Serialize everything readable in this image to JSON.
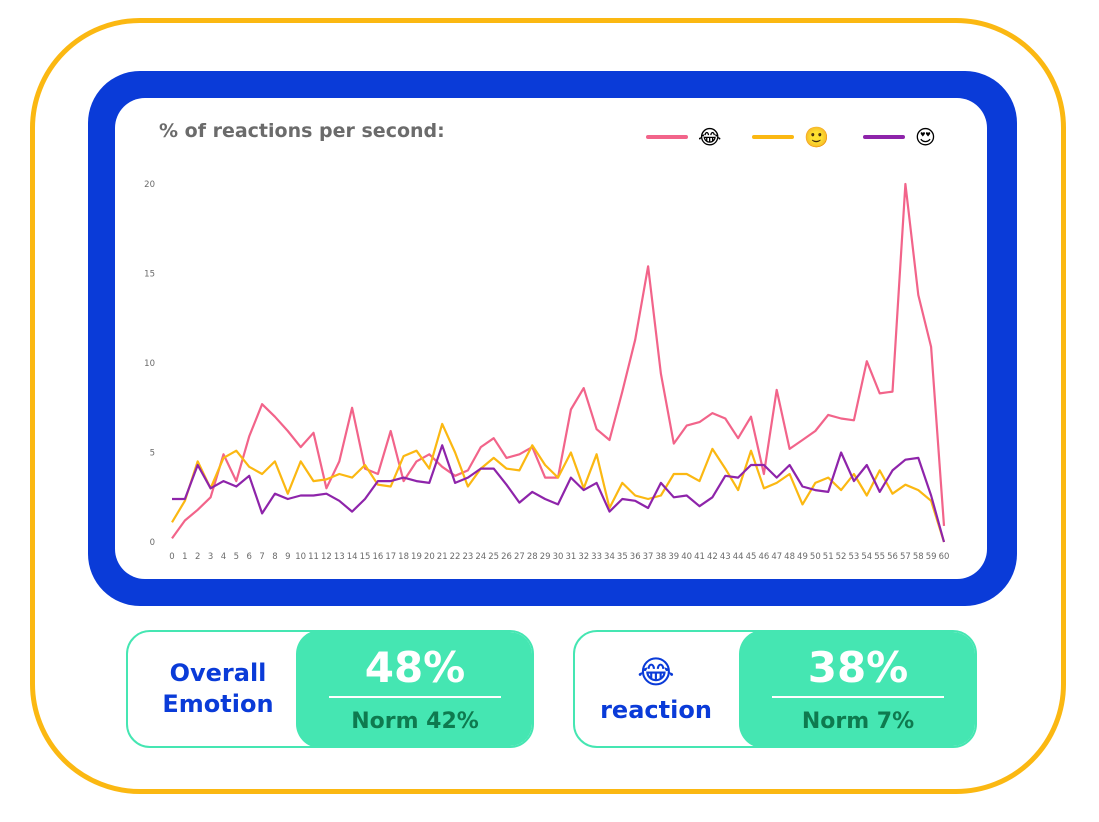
{
  "colors": {
    "outer_border": "#fbb812",
    "blue_frame": "#0a3bd8",
    "teal": "#45e6b2",
    "text_blue": "#0a3bd8",
    "norm_green": "#0e7a4f",
    "title_gray": "#6b6b6b"
  },
  "chart_data": {
    "type": "line",
    "title": "% of reactions per second:",
    "xlabel": "",
    "ylabel": "",
    "ylim": [
      0,
      20
    ],
    "yticks": [
      0,
      5,
      10,
      15,
      20
    ],
    "grid": false,
    "legend_position": "top-right",
    "x": [
      0,
      1,
      2,
      3,
      4,
      5,
      6,
      7,
      8,
      9,
      10,
      11,
      12,
      13,
      14,
      15,
      16,
      17,
      18,
      19,
      20,
      21,
      22,
      23,
      24,
      25,
      26,
      27,
      28,
      29,
      30,
      31,
      32,
      33,
      34,
      35,
      36,
      37,
      38,
      39,
      40,
      41,
      42,
      43,
      44,
      45,
      46,
      47,
      48,
      49,
      50,
      51,
      52,
      53,
      54,
      55,
      56,
      57,
      58,
      59,
      60
    ],
    "series": [
      {
        "name": "😂",
        "color": "#f2648a",
        "values": [
          0.2,
          1.2,
          1.8,
          2.5,
          4.9,
          3.4,
          5.9,
          7.7,
          7.0,
          6.2,
          5.3,
          6.1,
          3.0,
          4.5,
          7.5,
          4.1,
          3.8,
          6.2,
          3.4,
          4.5,
          4.9,
          4.2,
          3.7,
          4.0,
          5.3,
          5.8,
          4.7,
          4.9,
          5.3,
          3.6,
          3.6,
          7.4,
          8.6,
          6.3,
          5.7,
          8.4,
          11.3,
          15.4,
          9.4,
          5.5,
          6.5,
          6.7,
          7.2,
          6.9,
          5.8,
          7.0,
          3.8,
          8.5,
          5.2,
          5.7,
          6.2,
          7.1,
          6.9,
          6.8,
          10.1,
          8.3,
          8.4,
          20.0,
          13.8,
          10.9,
          0.9
        ]
      },
      {
        "name": "🙂",
        "color": "#fbb812",
        "values": [
          1.1,
          2.3,
          4.5,
          3.0,
          4.7,
          5.1,
          4.2,
          3.8,
          4.5,
          2.7,
          4.5,
          3.4,
          3.5,
          3.8,
          3.6,
          4.3,
          3.2,
          3.1,
          4.8,
          5.1,
          4.1,
          6.6,
          5.0,
          3.1,
          4.1,
          4.7,
          4.1,
          4.0,
          5.4,
          4.3,
          3.6,
          5.0,
          3.0,
          4.9,
          1.9,
          3.3,
          2.6,
          2.4,
          2.6,
          3.8,
          3.8,
          3.4,
          5.2,
          4.1,
          2.9,
          5.1,
          3.0,
          3.3,
          3.8,
          2.1,
          3.3,
          3.6,
          2.9,
          3.8,
          2.6,
          4.0,
          2.7,
          3.2,
          2.9,
          2.3,
          0.0
        ]
      },
      {
        "name": "😍",
        "color": "#8e24aa",
        "values": [
          2.4,
          2.4,
          4.3,
          3.0,
          3.4,
          3.1,
          3.7,
          1.6,
          2.7,
          2.4,
          2.6,
          2.6,
          2.7,
          2.3,
          1.7,
          2.4,
          3.4,
          3.4,
          3.6,
          3.4,
          3.3,
          5.4,
          3.3,
          3.6,
          4.1,
          4.1,
          3.2,
          2.2,
          2.8,
          2.4,
          2.1,
          3.6,
          2.9,
          3.3,
          1.7,
          2.4,
          2.3,
          1.9,
          3.3,
          2.5,
          2.6,
          2.0,
          2.5,
          3.7,
          3.6,
          4.3,
          4.3,
          3.6,
          4.3,
          3.1,
          2.9,
          2.8,
          5.0,
          3.4,
          4.3,
          2.8,
          4.0,
          4.6,
          4.7,
          2.6,
          0.0
        ]
      }
    ]
  },
  "stats": [
    {
      "label_line1": "Overall",
      "label_line2": "Emotion",
      "value": "48%",
      "norm": "Norm 42%"
    },
    {
      "emoji": "😂",
      "label": "reaction",
      "value": "38%",
      "norm": "Norm 7%"
    }
  ]
}
